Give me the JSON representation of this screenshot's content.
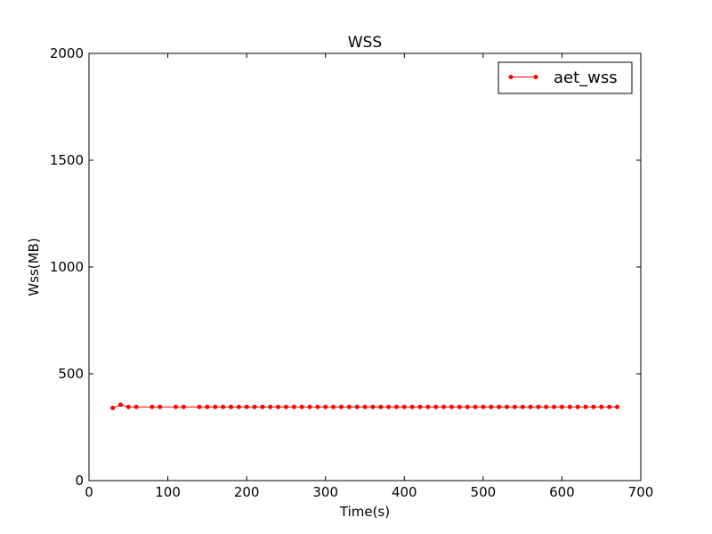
{
  "chart_data": {
    "type": "line",
    "title": "WSS",
    "xlabel": "Time(s)",
    "ylabel": "Wss(MB)",
    "xlim": [
      0,
      700
    ],
    "ylim": [
      0,
      2000
    ],
    "x_ticks": [
      0,
      100,
      200,
      300,
      400,
      500,
      600,
      700
    ],
    "y_ticks": [
      0,
      500,
      1000,
      1500,
      2000
    ],
    "x_tick_labels": [
      "0",
      "100",
      "200",
      "300",
      "400",
      "500",
      "600",
      "700"
    ],
    "y_tick_labels": [
      "0",
      "500",
      "1000",
      "1500",
      "2000"
    ],
    "grid": false,
    "legend_position": "top-right",
    "series": [
      {
        "name": "aet_wss",
        "color": "#ff0000",
        "marker": "dot",
        "x": [
          30,
          40,
          50,
          60,
          80,
          90,
          110,
          120,
          140,
          150,
          160,
          170,
          180,
          190,
          200,
          210,
          220,
          230,
          240,
          250,
          260,
          270,
          280,
          290,
          300,
          310,
          320,
          330,
          340,
          350,
          360,
          370,
          380,
          390,
          400,
          410,
          420,
          430,
          440,
          450,
          460,
          470,
          480,
          490,
          500,
          510,
          520,
          530,
          540,
          550,
          560,
          570,
          580,
          590,
          600,
          610,
          620,
          630,
          640,
          650,
          660,
          670
        ],
        "y": [
          340,
          355,
          345,
          345,
          345,
          345,
          345,
          345,
          345,
          345,
          345,
          345,
          345,
          345,
          345,
          345,
          345,
          345,
          345,
          345,
          345,
          345,
          345,
          345,
          345,
          345,
          345,
          345,
          345,
          345,
          345,
          345,
          345,
          345,
          345,
          345,
          345,
          345,
          345,
          345,
          345,
          345,
          345,
          345,
          345,
          345,
          345,
          345,
          345,
          345,
          345,
          345,
          345,
          345,
          345,
          345,
          345,
          345,
          345,
          345,
          345,
          345
        ]
      }
    ]
  }
}
